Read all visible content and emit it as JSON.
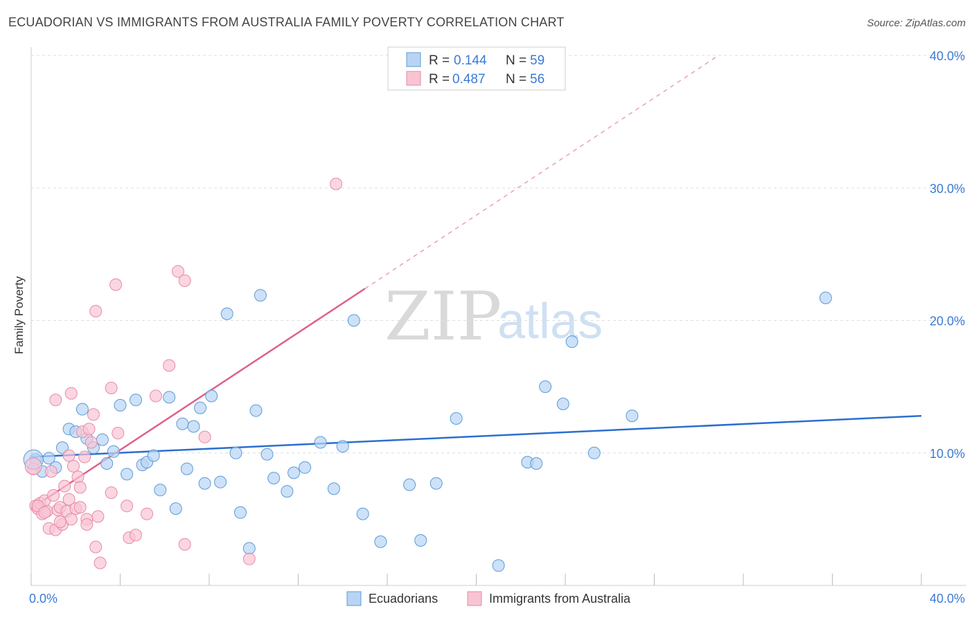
{
  "title": "ECUADORIAN VS IMMIGRANTS FROM AUSTRALIA FAMILY POVERTY CORRELATION CHART",
  "source": "Source: ZipAtlas.com",
  "watermark": {
    "zip": "ZIP",
    "atlas": "atlas"
  },
  "colors": {
    "blue_fill": "#b8d4f5",
    "blue_stroke": "#5b9bd5",
    "blue_line": "#2a6fcf",
    "pink_fill": "#f8c4d3",
    "pink_stroke": "#e889a8",
    "pink_line": "#e0608a",
    "grid": "#dddddd",
    "label_blue": "#3a7bd5"
  },
  "legend": {
    "items": [
      {
        "r_label": "R =",
        "r_value": "0.144",
        "n_label": "N =",
        "n_value": "59"
      },
      {
        "r_label": "R =",
        "r_value": "0.487",
        "n_label": "N =",
        "n_value": "56"
      }
    ]
  },
  "chart_data": {
    "type": "scatter",
    "title": "ECUADORIAN VS IMMIGRANTS FROM AUSTRALIA FAMILY POVERTY CORRELATION CHART",
    "xlabel": "",
    "ylabel": "Family Poverty",
    "xlim": [
      0,
      40
    ],
    "ylim": [
      0,
      40
    ],
    "x_tick_labels": [
      "0.0%",
      "40.0%"
    ],
    "y_tick_values": [
      10,
      20,
      30,
      40
    ],
    "y_tick_labels": [
      "10.0%",
      "20.0%",
      "30.0%",
      "40.0%"
    ],
    "series": [
      {
        "name": "Ecuadorians",
        "color": "#b8d4f5",
        "trend": {
          "x0": 0,
          "y0": 9.7,
          "x1": 40,
          "y1": 12.8,
          "dashed_extension": false
        },
        "points": [
          [
            0.2,
            9.5
          ],
          [
            0.5,
            8.6
          ],
          [
            0.8,
            9.6
          ],
          [
            1.1,
            8.9
          ],
          [
            1.4,
            10.4
          ],
          [
            1.7,
            11.8
          ],
          [
            2.0,
            11.6
          ],
          [
            2.3,
            13.3
          ],
          [
            2.5,
            11.1
          ],
          [
            2.8,
            10.4
          ],
          [
            3.2,
            11.0
          ],
          [
            3.4,
            9.2
          ],
          [
            3.7,
            10.1
          ],
          [
            4.0,
            13.6
          ],
          [
            4.3,
            8.4
          ],
          [
            4.7,
            14.0
          ],
          [
            5.0,
            9.1
          ],
          [
            5.2,
            9.3
          ],
          [
            5.5,
            9.8
          ],
          [
            5.8,
            7.2
          ],
          [
            6.2,
            14.2
          ],
          [
            6.5,
            5.8
          ],
          [
            6.8,
            12.2
          ],
          [
            7.0,
            8.8
          ],
          [
            7.3,
            12.0
          ],
          [
            7.6,
            13.4
          ],
          [
            7.8,
            7.7
          ],
          [
            8.1,
            14.3
          ],
          [
            8.5,
            7.8
          ],
          [
            8.8,
            20.5
          ],
          [
            9.2,
            10.0
          ],
          [
            9.4,
            5.5
          ],
          [
            9.8,
            2.8
          ],
          [
            10.1,
            13.2
          ],
          [
            10.3,
            21.9
          ],
          [
            10.6,
            9.9
          ],
          [
            10.9,
            8.1
          ],
          [
            11.5,
            7.1
          ],
          [
            11.8,
            8.5
          ],
          [
            12.3,
            8.9
          ],
          [
            13.0,
            10.8
          ],
          [
            13.6,
            7.3
          ],
          [
            14.0,
            10.5
          ],
          [
            14.5,
            20.0
          ],
          [
            14.9,
            5.4
          ],
          [
            15.7,
            3.3
          ],
          [
            17.0,
            7.6
          ],
          [
            17.5,
            3.4
          ],
          [
            18.2,
            7.7
          ],
          [
            19.1,
            12.6
          ],
          [
            21.0,
            1.5
          ],
          [
            22.3,
            9.3
          ],
          [
            22.7,
            9.2
          ],
          [
            23.1,
            15.0
          ],
          [
            23.9,
            13.7
          ],
          [
            24.3,
            18.4
          ],
          [
            25.3,
            10.0
          ],
          [
            27.0,
            12.8
          ],
          [
            35.7,
            21.7
          ]
        ]
      },
      {
        "name": "Immigrants from Australia",
        "color": "#f8c4d3",
        "trend": {
          "x0": 0,
          "y0": 5.8,
          "x1": 15.0,
          "y1": 22.4,
          "dashed_extension": true,
          "x_dash_end": 30.8,
          "y_dash_end": 39.9
        },
        "points": [
          [
            0.1,
            8.8
          ],
          [
            0.2,
            6.0
          ],
          [
            0.3,
            5.8
          ],
          [
            0.4,
            6.2
          ],
          [
            0.5,
            5.4
          ],
          [
            0.6,
            6.4
          ],
          [
            0.7,
            5.6
          ],
          [
            0.8,
            4.3
          ],
          [
            0.9,
            8.6
          ],
          [
            1.0,
            6.8
          ],
          [
            1.1,
            4.2
          ],
          [
            1.1,
            14.0
          ],
          [
            1.2,
            5.7
          ],
          [
            1.3,
            5.9
          ],
          [
            1.4,
            4.6
          ],
          [
            1.5,
            7.5
          ],
          [
            1.6,
            5.6
          ],
          [
            1.7,
            9.8
          ],
          [
            1.7,
            6.5
          ],
          [
            1.8,
            14.5
          ],
          [
            1.8,
            5.0
          ],
          [
            1.9,
            9.0
          ],
          [
            2.0,
            5.8
          ],
          [
            2.1,
            8.2
          ],
          [
            2.2,
            7.4
          ],
          [
            2.3,
            11.6
          ],
          [
            2.4,
            9.7
          ],
          [
            2.5,
            5.0
          ],
          [
            2.5,
            4.6
          ],
          [
            2.6,
            11.8
          ],
          [
            2.7,
            10.8
          ],
          [
            2.8,
            12.9
          ],
          [
            2.9,
            2.9
          ],
          [
            2.9,
            20.7
          ],
          [
            3.0,
            5.2
          ],
          [
            3.1,
            1.7
          ],
          [
            3.6,
            7.0
          ],
          [
            3.6,
            14.9
          ],
          [
            3.8,
            22.7
          ],
          [
            3.9,
            11.5
          ],
          [
            4.3,
            6.0
          ],
          [
            4.4,
            3.6
          ],
          [
            4.7,
            3.8
          ],
          [
            5.2,
            5.4
          ],
          [
            5.6,
            14.3
          ],
          [
            6.2,
            16.6
          ],
          [
            6.6,
            23.7
          ],
          [
            6.9,
            23.0
          ],
          [
            6.9,
            3.1
          ],
          [
            7.8,
            11.2
          ],
          [
            9.8,
            2.0
          ],
          [
            13.7,
            30.3
          ],
          [
            0.3,
            6.0
          ],
          [
            0.6,
            5.5
          ],
          [
            1.3,
            4.8
          ],
          [
            2.2,
            5.9
          ]
        ]
      }
    ],
    "legend_position": "top-center",
    "bottom_legend": [
      "Ecuadorians",
      "Immigrants from Australia"
    ]
  }
}
